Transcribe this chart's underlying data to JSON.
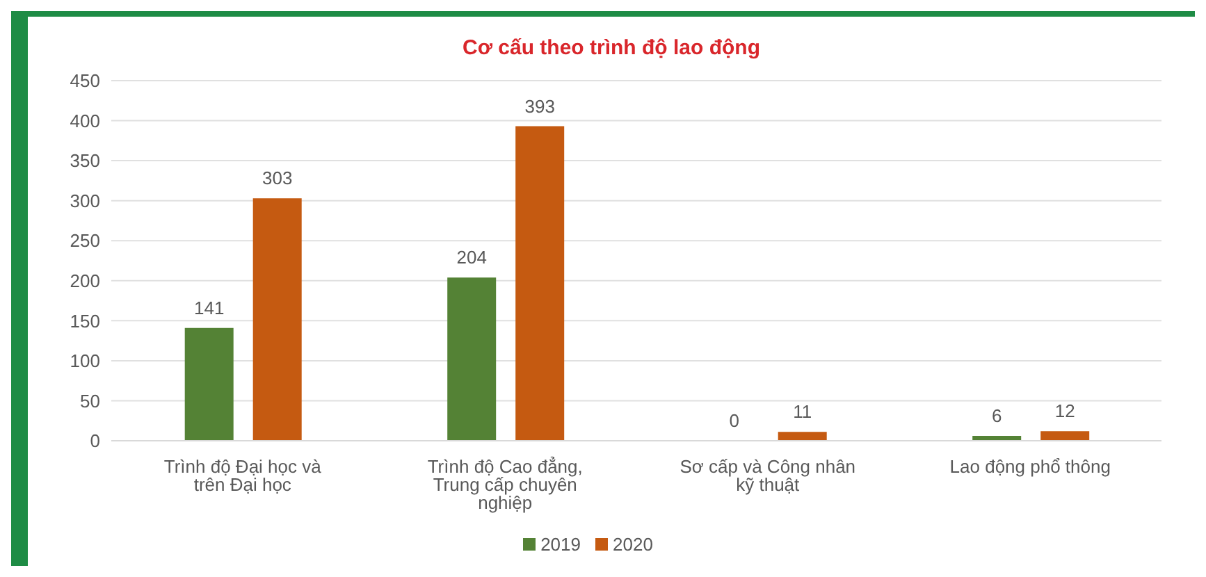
{
  "chart_data": {
    "type": "bar",
    "title": "Cơ cấu theo trình độ lao động",
    "categories": [
      "Trình độ Đại học và trên Đại học",
      "Trình độ Cao đẳng, Trung cấp chuyên nghiệp",
      "Sơ cấp và Công nhân kỹ thuật",
      "Lao động phổ thông"
    ],
    "series": [
      {
        "name": "2019",
        "color": "#548235",
        "values": [
          141,
          204,
          0,
          6
        ]
      },
      {
        "name": "2020",
        "color": "#c55a11",
        "values": [
          303,
          393,
          11,
          12
        ]
      }
    ],
    "ylim": [
      0,
      450
    ],
    "yticks": [
      0,
      50,
      100,
      150,
      200,
      250,
      300,
      350,
      400,
      450
    ],
    "grid": "y",
    "legend": "bottom",
    "data_labels": true
  }
}
